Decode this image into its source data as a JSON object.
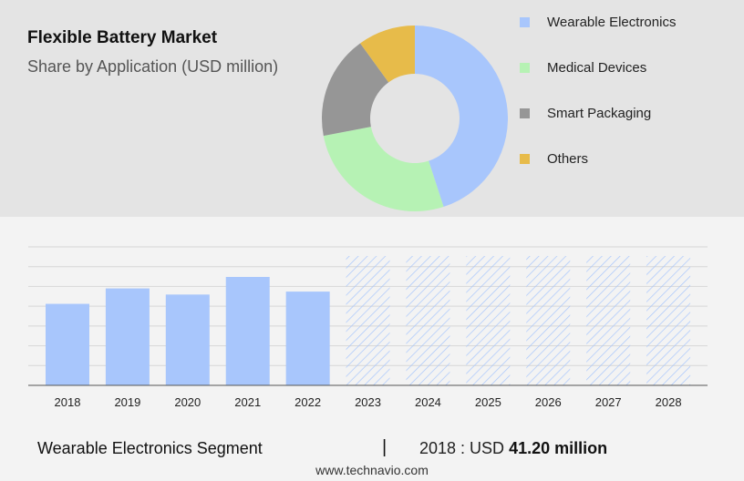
{
  "header": {
    "title": "Flexible Battery Market",
    "subtitle": "Share by Application (USD million)"
  },
  "colors": {
    "bar_actual": "#a8c6fc",
    "bar_forecast_hatch": "#a8c6fc",
    "gridline": "#d6d6d6",
    "axis": "#555555"
  },
  "chart_data": [
    {
      "type": "pie",
      "variant": "donut",
      "slices": [
        {
          "label": "Wearable Electronics",
          "value": 45,
          "color": "#a8c6fc"
        },
        {
          "label": "Medical Devices",
          "value": 27,
          "color": "#b6f2b4"
        },
        {
          "label": "Smart Packaging",
          "value": 18,
          "color": "#969696"
        },
        {
          "label": "Others",
          "value": 10,
          "color": "#e7bb4a"
        }
      ],
      "legend_position": "right"
    },
    {
      "type": "bar",
      "categories": [
        "2018",
        "2019",
        "2020",
        "2021",
        "2022",
        "2023",
        "2024",
        "2025",
        "2026",
        "2027",
        "2028"
      ],
      "values": [
        41.2,
        49.0,
        45.9,
        54.8,
        47.4,
        null,
        null,
        null,
        null,
        null,
        null
      ],
      "forecast": [
        false,
        false,
        false,
        false,
        false,
        true,
        true,
        true,
        true,
        true,
        true
      ],
      "ylim": [
        0,
        70
      ],
      "grid": true,
      "y_tick_labels_shown": false
    }
  ],
  "footer": {
    "segment": "Wearable Electronics Segment",
    "divider": "|",
    "value_prefix": "2018 : USD ",
    "value_bold": "41.20 million",
    "website": "www.technavio.com"
  }
}
